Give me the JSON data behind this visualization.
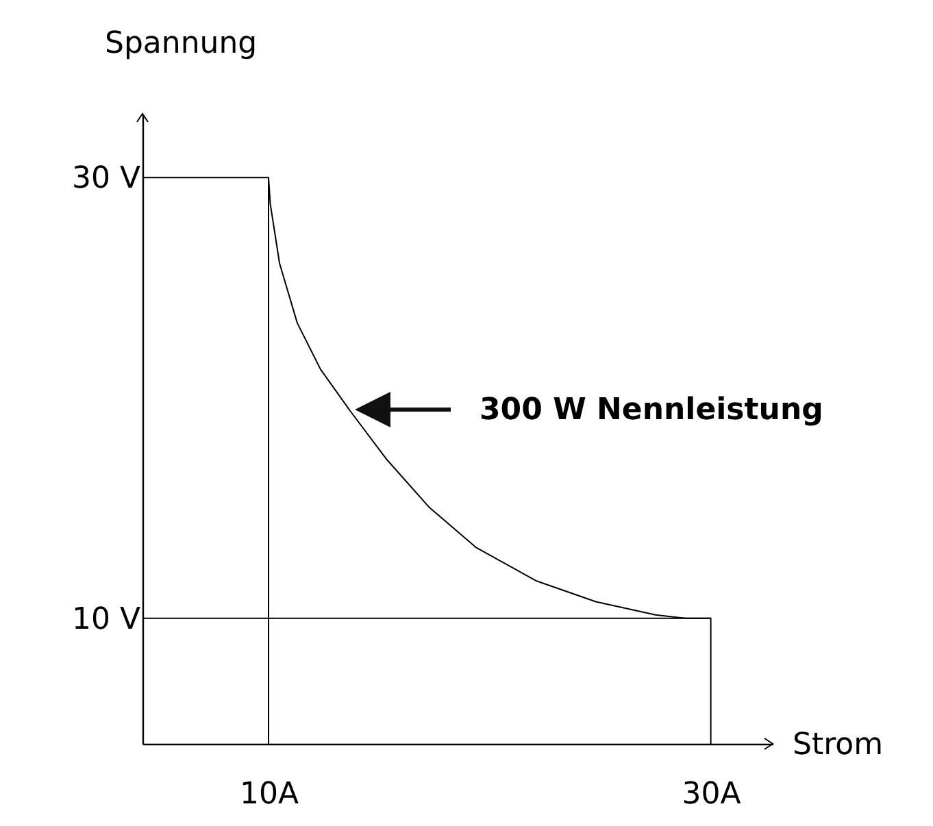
{
  "chart_data": {
    "type": "line",
    "xlabel": "Strom",
    "ylabel": "Spannung",
    "xlim": [
      4.3,
      32.8
    ],
    "ylim": [
      4.3,
      32.9
    ],
    "xticks": [
      {
        "value": 10,
        "label": "10A"
      },
      {
        "value": 30,
        "label": "30A"
      }
    ],
    "yticks": [
      {
        "value": 10,
        "label": "10 V"
      },
      {
        "value": 30,
        "label": "30 V"
      }
    ],
    "series": [
      {
        "color": "#000000",
        "x": [
          4.3,
          10,
          10.08,
          10.5,
          11.3,
          12.35,
          13.7,
          15.35,
          17.25,
          19.4,
          22.1,
          24.8,
          27.5,
          28.85,
          30,
          30
        ],
        "values": [
          30,
          30,
          28.8,
          26.1,
          23.4,
          21.3,
          19.4,
          17.2,
          15.05,
          13.2,
          11.7,
          10.75,
          10.15,
          10,
          10,
          4.3
        ]
      },
      {
        "color": "#000000",
        "x": [
          10,
          10
        ],
        "values": [
          4.3,
          30
        ]
      },
      {
        "color": "#000000",
        "x": [
          4.3,
          30
        ],
        "values": [
          10,
          10
        ]
      }
    ],
    "annotations": [
      "300 W Nennleistung"
    ],
    "grid": false,
    "legend": false,
    "marker": "none"
  }
}
